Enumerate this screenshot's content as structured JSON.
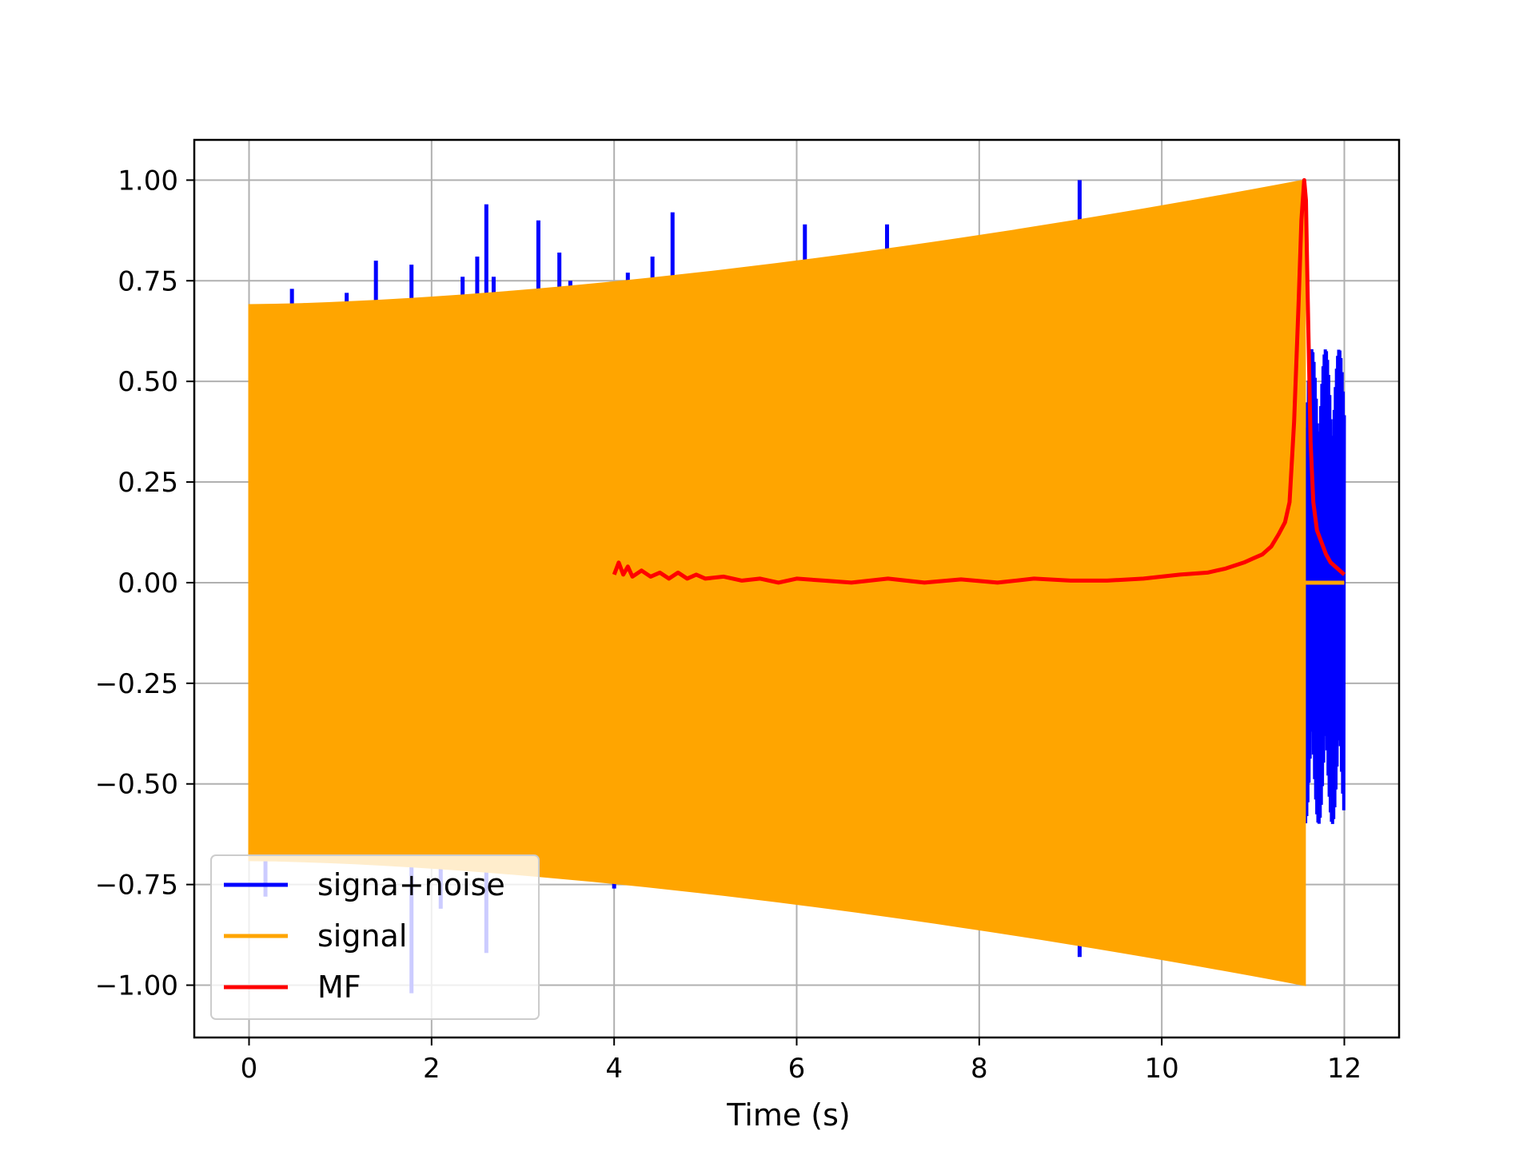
{
  "chart_data": {
    "type": "line",
    "title": "",
    "xlabel": "Time (s)",
    "ylabel": "",
    "xlim": [
      -0.6,
      12.6
    ],
    "ylim": [
      -1.13,
      1.1
    ],
    "xticks": [
      0,
      2,
      4,
      6,
      8,
      10,
      12
    ],
    "yticks": [
      1.0,
      0.75,
      0.5,
      0.25,
      0.0,
      -0.25,
      -0.5,
      -0.75,
      -1.0
    ],
    "ytick_labels": [
      "1.00",
      "0.75",
      "0.50",
      "0.25",
      "0.00",
      "−0.25",
      "−0.50",
      "−0.75",
      "−1.00"
    ],
    "grid": true,
    "legend_position": "lower-left",
    "series": [
      {
        "name": "signa+noise",
        "color": "#0000ff",
        "description": "dense noisy oscillation, mostly hidden behind signal",
        "spikes": [
          {
            "x": 0.47,
            "y": 0.73
          },
          {
            "x": 1.07,
            "y": 0.72
          },
          {
            "x": 1.39,
            "y": 0.8
          },
          {
            "x": 1.78,
            "y": 0.79
          },
          {
            "x": 2.34,
            "y": 0.76
          },
          {
            "x": 2.5,
            "y": 0.81
          },
          {
            "x": 2.6,
            "y": 0.94
          },
          {
            "x": 2.68,
            "y": 0.76
          },
          {
            "x": 3.17,
            "y": 0.9
          },
          {
            "x": 3.4,
            "y": 0.82
          },
          {
            "x": 3.52,
            "y": 0.75
          },
          {
            "x": 4.15,
            "y": 0.77
          },
          {
            "x": 4.42,
            "y": 0.81
          },
          {
            "x": 4.64,
            "y": 0.92
          },
          {
            "x": 6.09,
            "y": 0.89
          },
          {
            "x": 6.99,
            "y": 0.89
          },
          {
            "x": 9.1,
            "y": 1.0
          },
          {
            "x": 0.18,
            "y": -0.78
          },
          {
            "x": 1.78,
            "y": -1.02
          },
          {
            "x": 2.1,
            "y": -0.81
          },
          {
            "x": 2.6,
            "y": -0.92
          },
          {
            "x": 4.0,
            "y": -0.76
          },
          {
            "x": 9.1,
            "y": -0.93
          }
        ],
        "tail": {
          "x_start": 11.57,
          "x_end": 12.0,
          "ymin": -0.6,
          "ymax": 0.58
        }
      },
      {
        "name": "signal",
        "color": "#ffa500",
        "description": "chirp envelope filled band",
        "x_start": 0.0,
        "x_end": 11.57,
        "envelope_start": 0.69,
        "envelope_end": 1.0,
        "flat_after": {
          "x_start": 11.57,
          "x_end": 12.0,
          "y": 0.0
        }
      },
      {
        "name": "MF",
        "color": "#ff0000",
        "x": [
          4.0,
          4.05,
          4.1,
          4.15,
          4.2,
          4.3,
          4.4,
          4.5,
          4.6,
          4.7,
          4.8,
          4.9,
          5.0,
          5.2,
          5.4,
          5.6,
          5.8,
          6.0,
          6.3,
          6.6,
          7.0,
          7.4,
          7.8,
          8.2,
          8.6,
          9.0,
          9.4,
          9.8,
          10.2,
          10.5,
          10.7,
          10.9,
          11.0,
          11.1,
          11.2,
          11.28,
          11.35,
          11.4,
          11.45,
          11.5,
          11.53,
          11.56,
          11.58,
          11.6,
          11.63,
          11.66,
          11.7,
          11.75,
          11.8,
          11.85,
          11.9,
          11.95,
          12.0
        ],
        "y": [
          0.02,
          0.05,
          0.02,
          0.04,
          0.015,
          0.03,
          0.015,
          0.025,
          0.01,
          0.025,
          0.01,
          0.02,
          0.01,
          0.015,
          0.005,
          0.01,
          0.0,
          0.01,
          0.005,
          0.0,
          0.01,
          0.0,
          0.008,
          0.0,
          0.01,
          0.005,
          0.005,
          0.01,
          0.02,
          0.025,
          0.035,
          0.05,
          0.06,
          0.07,
          0.09,
          0.12,
          0.15,
          0.2,
          0.4,
          0.7,
          0.9,
          1.0,
          0.95,
          0.7,
          0.35,
          0.2,
          0.13,
          0.1,
          0.07,
          0.05,
          0.04,
          0.03,
          0.02
        ]
      }
    ]
  }
}
